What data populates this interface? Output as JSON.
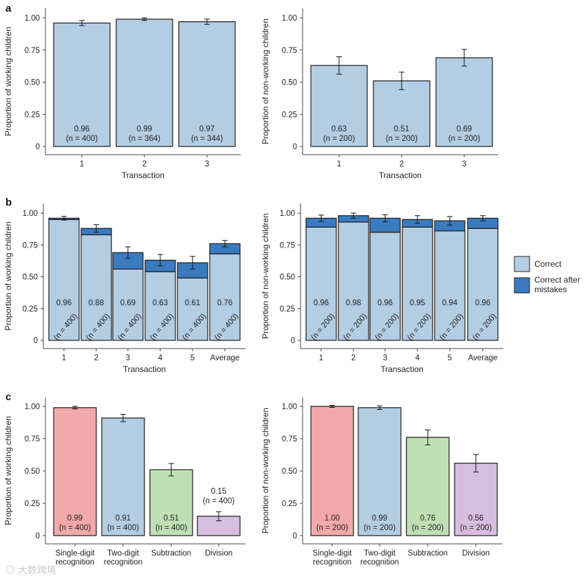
{
  "chart_data": [
    {
      "panel": "a",
      "side": "left",
      "type": "bar",
      "ylabel": "Proportion of working children",
      "xlabel": "Transaction",
      "categories": [
        "1",
        "2",
        "3"
      ],
      "values": [
        0.96,
        0.99,
        0.97
      ],
      "value_labels": [
        "0.96",
        "0.99",
        "0.97"
      ],
      "n_labels": [
        "(n = 400)",
        "(n = 364)",
        "(n = 344)"
      ],
      "errors": [
        0.02,
        0.01,
        0.02
      ],
      "colors": [
        "#b3cde3",
        "#b3cde3",
        "#b3cde3"
      ],
      "ylim": [
        0,
        1.0
      ],
      "y_ticks": [
        "0",
        "0.25",
        "0.50",
        "0.75",
        "1.00"
      ]
    },
    {
      "panel": "a",
      "side": "right",
      "type": "bar",
      "ylabel": "Proportion of non-working children",
      "xlabel": "Transaction",
      "categories": [
        "1",
        "2",
        "3"
      ],
      "values": [
        0.63,
        0.51,
        0.69
      ],
      "value_labels": [
        "0.63",
        "0.51",
        "0.69"
      ],
      "n_labels": [
        "(n = 200)",
        "(n = 200)",
        "(n = 200)"
      ],
      "errors": [
        0.068,
        0.068,
        0.065
      ],
      "colors": [
        "#b3cde3",
        "#b3cde3",
        "#b3cde3"
      ],
      "ylim": [
        0,
        1.0
      ],
      "y_ticks": [
        "0",
        "0.25",
        "0.50",
        "0.75",
        "1.00"
      ]
    },
    {
      "panel": "b",
      "side": "left",
      "type": "stacked-bar",
      "ylabel": "Proportion of working children",
      "xlabel": "Transaction",
      "categories": [
        "1",
        "2",
        "3",
        "4",
        "5",
        "Average"
      ],
      "series": [
        {
          "name": "Correct",
          "values": [
            0.95,
            0.83,
            0.56,
            0.54,
            0.49,
            0.68
          ]
        },
        {
          "name": "Correct after mistakes",
          "values": [
            0.01,
            0.05,
            0.13,
            0.09,
            0.12,
            0.08
          ]
        }
      ],
      "values": [
        0.96,
        0.88,
        0.69,
        0.63,
        0.61,
        0.76
      ],
      "value_labels": [
        "0.96",
        "0.88",
        "0.69",
        "0.63",
        "0.61",
        "0.76"
      ],
      "n_labels": [
        "(n = 400)",
        "(n = 400)",
        "(n = 400)",
        "(n = 400)",
        "(n = 400)",
        "(n = 400)"
      ],
      "errors": [
        0.015,
        0.03,
        0.045,
        0.045,
        0.05,
        0.025
      ],
      "ylim": [
        0,
        1.0
      ],
      "y_ticks": [
        "0",
        "0.25",
        "0.50",
        "0.75",
        "1.00"
      ]
    },
    {
      "panel": "b",
      "side": "right",
      "type": "stacked-bar",
      "ylabel": "Proportion of non-working children",
      "xlabel": "Transaction",
      "categories": [
        "1",
        "2",
        "3",
        "4",
        "5",
        "Average"
      ],
      "series": [
        {
          "name": "Correct",
          "values": [
            0.89,
            0.93,
            0.85,
            0.89,
            0.86,
            0.88
          ]
        },
        {
          "name": "Correct after mistakes",
          "values": [
            0.07,
            0.05,
            0.11,
            0.06,
            0.08,
            0.08
          ]
        }
      ],
      "values": [
        0.96,
        0.98,
        0.96,
        0.95,
        0.94,
        0.96
      ],
      "value_labels": [
        "0.96",
        "0.98",
        "0.96",
        "0.95",
        "0.94",
        "0.96"
      ],
      "n_labels": [
        "(n = 200)",
        "(n = 200)",
        "(n = 200)",
        "(n = 200)",
        "(n = 200)",
        "(n = 200)"
      ],
      "errors": [
        0.025,
        0.02,
        0.028,
        0.03,
        0.033,
        0.02
      ],
      "ylim": [
        0,
        1.0
      ],
      "y_ticks": [
        "0",
        "0.25",
        "0.50",
        "0.75",
        "1.00"
      ]
    },
    {
      "panel": "c",
      "side": "left",
      "type": "bar",
      "ylabel": "Proportion of working children",
      "xlabel": "",
      "categories": [
        [
          "Single-digit",
          "recognition"
        ],
        [
          "Two-digit",
          "recognition"
        ],
        [
          "Subtraction"
        ],
        [
          "Division"
        ]
      ],
      "values": [
        0.99,
        0.91,
        0.51,
        0.15
      ],
      "value_labels": [
        "0.99",
        "0.91",
        "0.51",
        "0.15"
      ],
      "n_labels": [
        "(n = 400)",
        "(n = 400)",
        "(n = 400)",
        "(n = 400)"
      ],
      "errors": [
        0.01,
        0.028,
        0.048,
        0.035
      ],
      "colors": [
        "#f2a9a9",
        "#b3cde3",
        "#bfe0b5",
        "#d7bddf"
      ],
      "ylim": [
        0,
        1.0
      ],
      "y_ticks": [
        "0",
        "0.25",
        "0.50",
        "0.75",
        "1.00"
      ]
    },
    {
      "panel": "c",
      "side": "right",
      "type": "bar",
      "ylabel": "Proportion of non-working children",
      "xlabel": "",
      "categories": [
        [
          "Single-digit",
          "recognition"
        ],
        [
          "Two-digit",
          "recognition"
        ],
        [
          "Subtraction"
        ],
        [
          "Division"
        ]
      ],
      "values": [
        1.0,
        0.99,
        0.76,
        0.56
      ],
      "value_labels": [
        "1.00",
        "0.99",
        "0.76",
        "0.56"
      ],
      "n_labels": [
        "(n = 200)",
        "(n = 200)",
        "(n = 200)",
        "(n = 200)"
      ],
      "errors": [
        0.008,
        0.014,
        0.058,
        0.068
      ],
      "colors": [
        "#f2a9a9",
        "#b3cde3",
        "#bfe0b5",
        "#d7bddf"
      ],
      "ylim": [
        0,
        1.0
      ],
      "y_ticks": [
        "0",
        "0.25",
        "0.50",
        "0.75",
        "1.00"
      ]
    }
  ],
  "panel_letters": [
    "a",
    "b",
    "c"
  ],
  "legend": {
    "items": [
      {
        "label_lines": [
          "Correct"
        ],
        "color": "#b3cde3"
      },
      {
        "label_lines": [
          "Correct after",
          "mistakes"
        ],
        "color": "#3a7bbf"
      }
    ]
  },
  "watermark": "大数跨境"
}
